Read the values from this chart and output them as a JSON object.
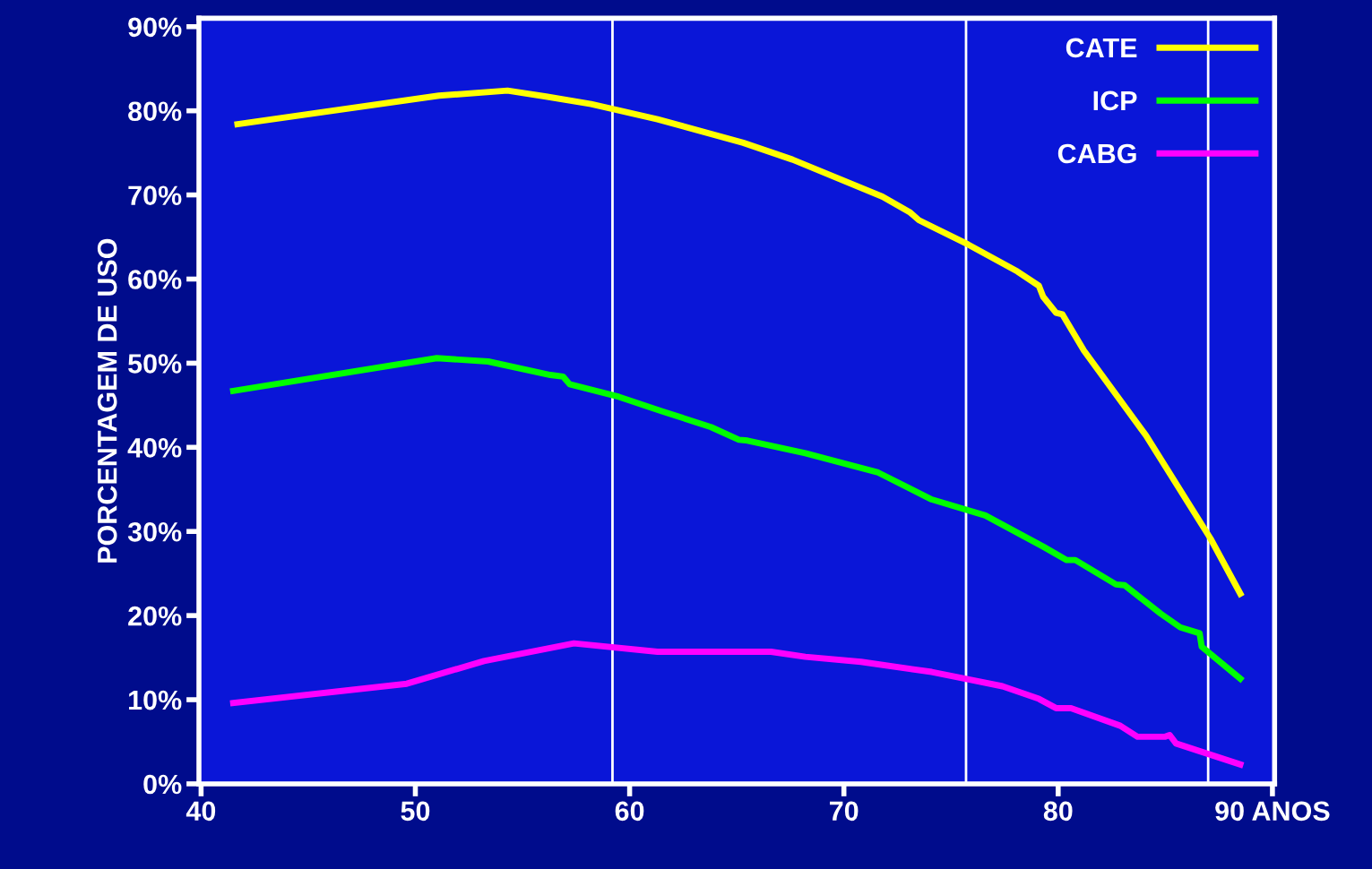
{
  "chart_data": {
    "type": "line",
    "ylabel": "PORCENTAGEM DE USO",
    "xlim": [
      39.9,
      90.1
    ],
    "ylim": [
      0,
      91
    ],
    "xticks": [
      40,
      50,
      60,
      70,
      80,
      {
        "value": 90,
        "label": "90 ANOS"
      }
    ],
    "yticks": [
      {
        "value": 0,
        "label": "0%"
      },
      {
        "value": 10,
        "label": "10%"
      },
      {
        "value": 20,
        "label": "20%"
      },
      {
        "value": 30,
        "label": "30%"
      },
      {
        "value": 40,
        "label": "40%"
      },
      {
        "value": 50,
        "label": "50%"
      },
      {
        "value": 60,
        "label": "60%"
      },
      {
        "value": 70,
        "label": "70%"
      },
      {
        "value": 80,
        "label": "80%"
      },
      {
        "value": 90,
        "label": "90%"
      }
    ],
    "grid": false,
    "legend": "top right",
    "marker": "none",
    "line_style": "solid",
    "ref_lines": [
      {
        "axis": "x",
        "value": 59.2,
        "color": "#ffffff"
      },
      {
        "axis": "x",
        "value": 75.7,
        "color": "#ffffff"
      },
      {
        "axis": "x",
        "value": 87.0,
        "color": "#ffffff"
      }
    ],
    "series": [
      {
        "name": "CATE",
        "color": "#ffff00",
        "x": [
          41.7,
          51.1,
          54.3,
          56.1,
          58.2,
          61.3,
          65.3,
          67.6,
          71.8,
          73.1,
          73.5,
          75.8,
          78.1,
          79.1,
          79.3,
          79.9,
          80.2,
          81.2,
          84.1,
          87.1,
          88.5
        ],
        "values": [
          78.4,
          81.8,
          82.4,
          81.7,
          80.8,
          79.0,
          76.2,
          74.2,
          69.8,
          67.9,
          67.0,
          64.1,
          60.9,
          59.2,
          57.9,
          56.0,
          55.8,
          51.5,
          41.4,
          29.2,
          22.6
        ]
      },
      {
        "name": "ICP",
        "color": "#00ff00",
        "x": [
          41.5,
          51.0,
          53.4,
          56.3,
          56.9,
          57.2,
          59.5,
          61.5,
          63.8,
          65.1,
          65.5,
          68.2,
          71.6,
          74.1,
          76.6,
          79.3,
          80.4,
          80.8,
          82.7,
          83.1,
          84.8,
          85.7,
          86.6,
          86.7,
          88.5
        ],
        "values": [
          46.7,
          50.6,
          50.2,
          48.6,
          48.4,
          47.5,
          46.0,
          44.3,
          42.4,
          40.9,
          40.8,
          39.3,
          37.0,
          33.8,
          31.9,
          28.2,
          26.6,
          26.6,
          23.7,
          23.6,
          20.2,
          18.6,
          17.9,
          16.3,
          12.5
        ]
      },
      {
        "name": "CABG",
        "color": "#ff00ff",
        "x": [
          41.5,
          49.6,
          53.2,
          57.4,
          61.3,
          66.6,
          68.2,
          70.8,
          74.1,
          77.4,
          79.1,
          79.9,
          80.6,
          82.9,
          83.7,
          85.0,
          85.2,
          85.5,
          88.5
        ],
        "values": [
          9.6,
          11.9,
          14.6,
          16.7,
          15.7,
          15.7,
          15.1,
          14.5,
          13.3,
          11.6,
          10.1,
          9.0,
          9.0,
          6.9,
          5.6,
          5.6,
          5.8,
          4.8,
          2.3
        ]
      }
    ]
  }
}
